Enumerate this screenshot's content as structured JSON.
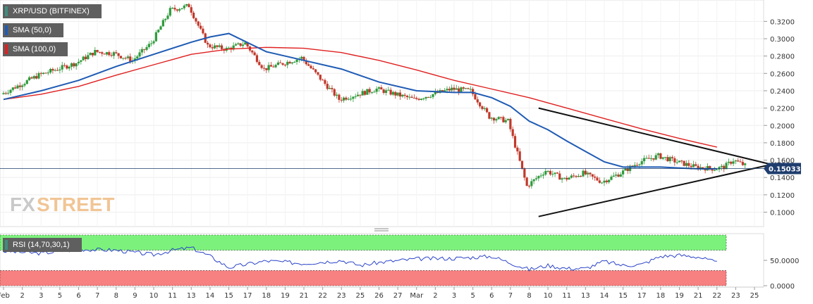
{
  "chart_data": {
    "type": "candlestick",
    "pair_label": "XRP/USD (BITFINEX)",
    "indicators": [
      {
        "label": "SMA (50,0)",
        "color": "#1f5bb4"
      },
      {
        "label": "SMA (100,0)",
        "color": "#e02020"
      }
    ],
    "rsi_label": "RSI (14,70,30,1)",
    "rsi_color": "#2b44c8",
    "last_price": "0.15033",
    "last_price_value": 0.15033,
    "watermark_fx": "FX",
    "watermark_street": "STREET",
    "price_axis": {
      "ticks": [
        "0.3200",
        "0.3000",
        "0.2800",
        "0.2600",
        "0.2400",
        "0.2200",
        "0.2000",
        "0.1800",
        "0.1600",
        "0.1400",
        "0.1200",
        "0.1000"
      ],
      "range": [
        0.085,
        0.343
      ]
    },
    "rsi_axis": {
      "ticks": [
        "50.0000",
        "0.0000"
      ],
      "range": [
        0,
        100
      ],
      "overbought": 70,
      "oversold": 30
    },
    "x_axis": {
      "labels": [
        "Feb",
        "2",
        "3",
        "5",
        "6",
        "7",
        "8",
        "9",
        "10",
        "11",
        "13",
        "14",
        "15",
        "17",
        "18",
        "19",
        "21",
        "22",
        "23",
        "25",
        "26",
        "27",
        "Mar",
        "2",
        "3",
        "5",
        "6",
        "7",
        "8",
        "10",
        "11",
        "13",
        "14",
        "15",
        "17",
        "18",
        "19",
        "21",
        "22",
        "23",
        "25"
      ],
      "range": [
        0,
        40
      ]
    },
    "anchor_x": [
      0,
      2,
      4,
      5,
      6,
      7,
      8,
      9,
      10,
      11,
      12,
      13,
      14,
      16,
      18,
      20,
      22,
      24,
      25,
      26,
      27,
      28,
      29,
      30,
      31,
      32,
      33,
      34,
      35,
      36,
      37,
      38,
      38.5,
      39,
      40
    ],
    "anchor_close": [
      0.236,
      0.258,
      0.272,
      0.285,
      0.283,
      0.275,
      0.295,
      0.333,
      0.338,
      0.292,
      0.288,
      0.295,
      0.265,
      0.278,
      0.23,
      0.242,
      0.23,
      0.242,
      0.24,
      0.21,
      0.205,
      0.13,
      0.148,
      0.138,
      0.145,
      0.135,
      0.145,
      0.158,
      0.165,
      0.158,
      0.152,
      0.15,
      0.152,
      0.16,
      0.15
    ],
    "sma50": {
      "x": [
        0,
        2,
        4,
        6,
        8,
        10,
        11,
        12,
        14,
        16,
        18,
        20,
        22,
        24,
        25,
        26,
        27,
        28,
        29,
        30,
        31,
        32,
        33,
        34,
        35,
        36,
        37,
        38
      ],
      "y": [
        0.23,
        0.24,
        0.252,
        0.268,
        0.282,
        0.296,
        0.302,
        0.306,
        0.285,
        0.275,
        0.265,
        0.25,
        0.24,
        0.238,
        0.238,
        0.232,
        0.222,
        0.205,
        0.195,
        0.182,
        0.17,
        0.158,
        0.152,
        0.152,
        0.152,
        0.151,
        0.15,
        0.15
      ]
    },
    "sma100": {
      "x": [
        0,
        2,
        4,
        6,
        8,
        10,
        12,
        14,
        16,
        18,
        20,
        22,
        24,
        26,
        28,
        30,
        32,
        34,
        36,
        37,
        38
      ],
      "y": [
        0.23,
        0.236,
        0.245,
        0.258,
        0.27,
        0.282,
        0.288,
        0.29,
        0.289,
        0.284,
        0.275,
        0.264,
        0.252,
        0.242,
        0.232,
        0.22,
        0.208,
        0.196,
        0.185,
        0.18,
        0.175
      ]
    },
    "trendlines": [
      {
        "x": [
          28.5,
          40.9
        ],
        "y": [
          0.22,
          0.155
        ]
      },
      {
        "x": [
          28.5,
          40.9
        ],
        "y": [
          0.095,
          0.155
        ]
      }
    ],
    "rsi": {
      "x": [
        0,
        2,
        4,
        6,
        8,
        9,
        10,
        11,
        12,
        14,
        16,
        18,
        19,
        20,
        22,
        24,
        26,
        28,
        29,
        30,
        31,
        32,
        33,
        34,
        35,
        36,
        37,
        38
      ],
      "y": [
        68,
        64,
        72,
        70,
        61,
        70,
        75,
        58,
        36,
        49,
        44,
        50,
        40,
        46,
        53,
        54,
        58,
        32,
        40,
        34,
        34,
        48,
        40,
        42,
        58,
        60,
        57,
        45
      ]
    }
  }
}
